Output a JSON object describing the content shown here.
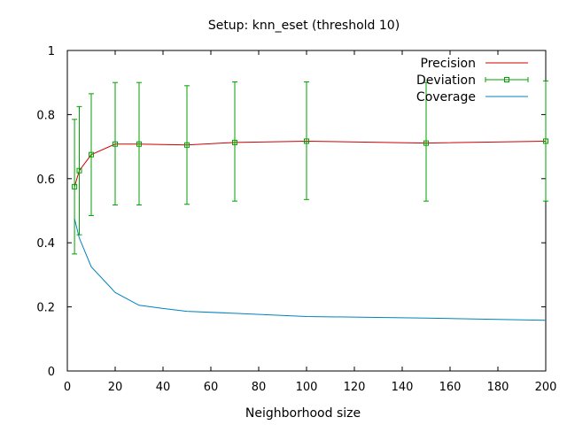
{
  "chart_data": {
    "type": "line",
    "title": "Setup: knn_eset (threshold 10)",
    "xlabel": "Neighborhood size",
    "ylabel": "",
    "xlim": [
      0,
      200
    ],
    "ylim": [
      0,
      1
    ],
    "x_ticks": [
      "0",
      "20",
      "40",
      "60",
      "80",
      "100",
      "120",
      "140",
      "160",
      "180",
      "200"
    ],
    "y_ticks": [
      "0",
      "0.2",
      "0.4",
      "0.6",
      "0.8",
      "1"
    ],
    "grid": false,
    "legend_position": "top-right",
    "series": [
      {
        "name": "Precision",
        "color": "#cc0000",
        "x": [
          3,
          5,
          10,
          20,
          30,
          50,
          70,
          100,
          150,
          200
        ],
        "y": [
          0.575,
          0.625,
          0.675,
          0.708,
          0.708,
          0.705,
          0.713,
          0.717,
          0.711,
          0.717
        ]
      },
      {
        "name": "Deviation",
        "color": "#00a000",
        "x": [
          3,
          5,
          10,
          20,
          30,
          50,
          70,
          100,
          150,
          200
        ],
        "y": [
          0.575,
          0.625,
          0.675,
          0.708,
          0.708,
          0.705,
          0.713,
          0.717,
          0.711,
          0.717
        ],
        "err_low": [
          0.365,
          0.425,
          0.485,
          0.518,
          0.518,
          0.52,
          0.53,
          0.535,
          0.53,
          0.53
        ],
        "err_high": [
          0.785,
          0.825,
          0.865,
          0.9,
          0.9,
          0.89,
          0.902,
          0.902,
          0.9,
          0.905
        ]
      },
      {
        "name": "Coverage",
        "color": "#0080c0",
        "x": [
          3,
          5,
          10,
          20,
          30,
          40,
          50,
          70,
          100,
          150,
          200
        ],
        "y": [
          0.475,
          0.415,
          0.325,
          0.245,
          0.205,
          0.195,
          0.186,
          0.18,
          0.17,
          0.165,
          0.158
        ]
      }
    ]
  }
}
